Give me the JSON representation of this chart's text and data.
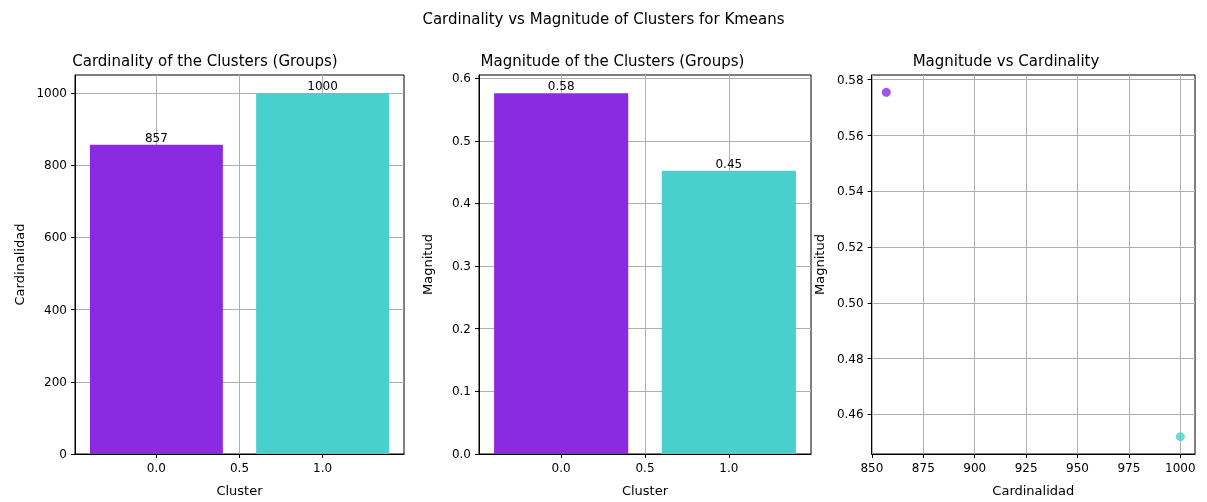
{
  "chart_data": [
    {
      "type": "bar",
      "title": "Cardinality of the Clusters (Groups)",
      "xlabel": "Cluster",
      "ylabel": "Cardinalidad",
      "annotations": [
        "Cardinality vs Magnitude of Clusters for Kmeans"
      ],
      "x": [
        0,
        1
      ],
      "values": [
        857,
        1000
      ],
      "colors": [
        "#8a2be2",
        "#48d1cc"
      ],
      "data_labels": true,
      "xlim": [
        -0.49,
        1.49
      ],
      "xticks": [
        {
          "value": 0,
          "label": "0.0"
        },
        {
          "value": 0.5,
          "label": "0.5"
        },
        {
          "value": 1,
          "label": "1.0"
        }
      ],
      "ylim": [
        0,
        1050
      ],
      "yticks": [
        0,
        200,
        400,
        600,
        800,
        1000
      ],
      "grid": true
    },
    {
      "type": "bar",
      "title": "Magnitude of the Clusters (Groups)",
      "xlabel": "Cluster",
      "ylabel": "Magnitud",
      "x": [
        0,
        1
      ],
      "values": [
        0.576,
        0.452
      ],
      "value_labels": [
        "0.58",
        "0.45"
      ],
      "colors": [
        "#8a2be2",
        "#48d1cc"
      ],
      "xlim": [
        -0.49,
        1.49
      ],
      "xticks": [
        {
          "value": 0,
          "label": "0.0"
        },
        {
          "value": 0.5,
          "label": "0.5"
        },
        {
          "value": 1,
          "label": "1.0"
        }
      ],
      "ylim": [
        0,
        0.605
      ],
      "yticks": [
        {
          "value": 0,
          "label": "0.0"
        },
        0.1,
        0.2,
        0.3,
        0.4,
        0.5,
        0.6
      ],
      "grid": true
    },
    {
      "type": "scatter",
      "title": "Magnitude vs Cardinality",
      "xlabel": "Cardinalidad",
      "ylabel": "Magnitud",
      "x": [
        857,
        1000
      ],
      "values": [
        0.5755,
        0.452
      ],
      "colors": [
        "#8a2be2",
        "#48d1cc"
      ],
      "marker": "circle",
      "xlim": [
        849.85,
        1007.15
      ],
      "xticks": [
        850,
        875,
        900,
        925,
        950,
        975,
        1000
      ],
      "ylim": [
        0.4458,
        0.5817
      ],
      "yticks": [
        0.46,
        0.48,
        {
          "value": 0.5,
          "label": "0.50"
        },
        0.52,
        0.54,
        0.56,
        0.58
      ],
      "grid": true
    }
  ]
}
